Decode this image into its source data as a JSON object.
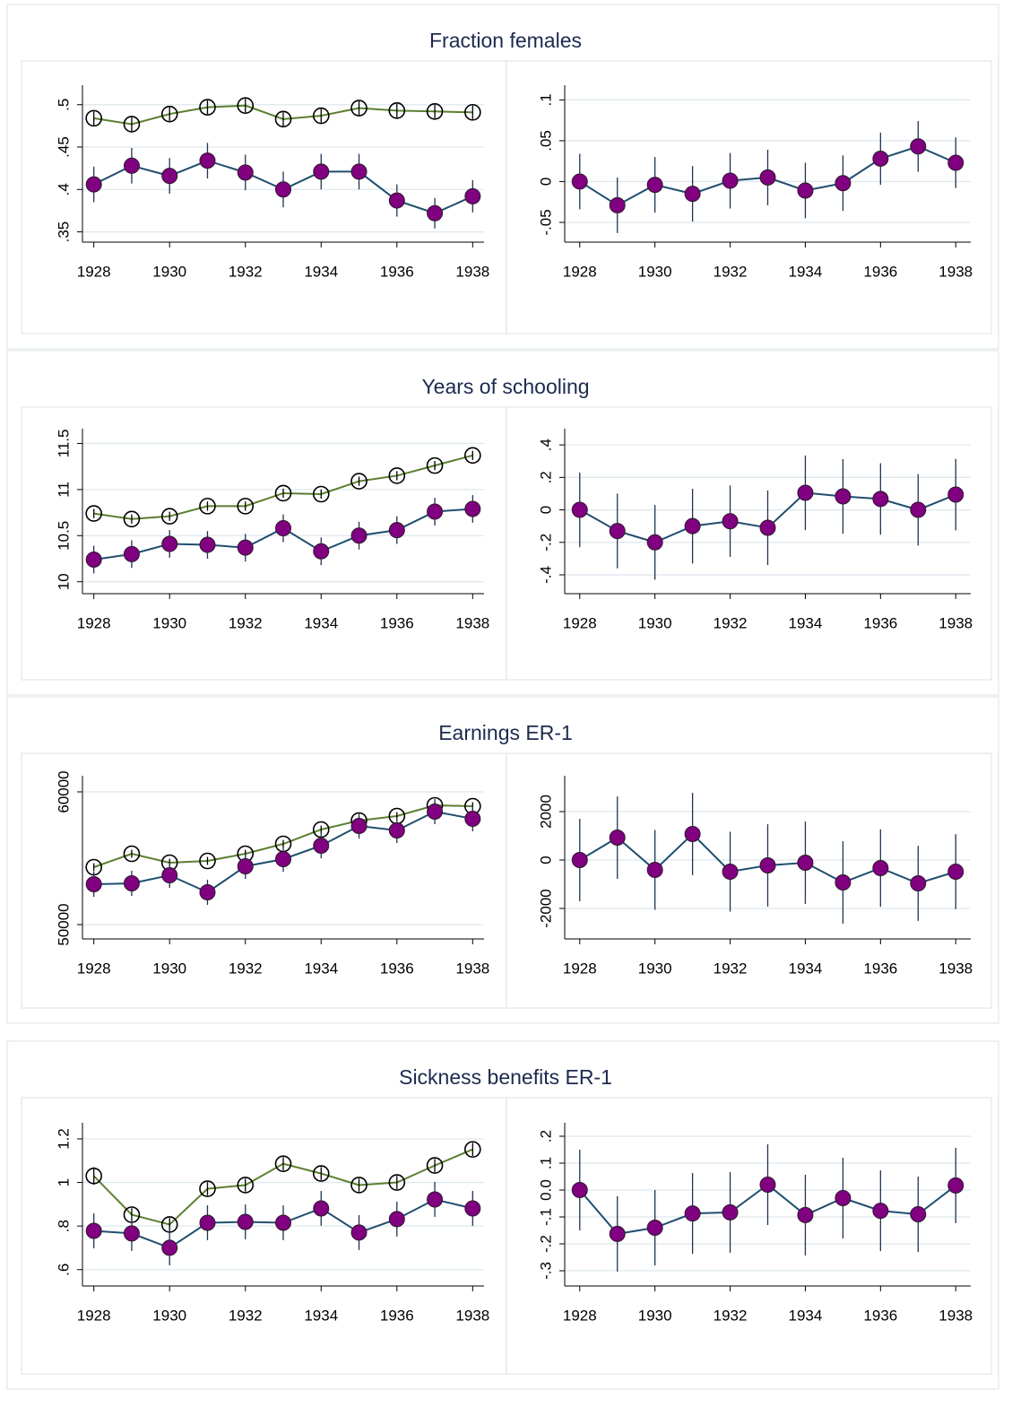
{
  "chart_data": [
    {
      "type": "line",
      "title": "Fraction females",
      "x": [
        1928,
        1929,
        1930,
        1931,
        1932,
        1933,
        1934,
        1935,
        1936,
        1937,
        1938
      ],
      "xlim": [
        1927.7,
        1938.3
      ],
      "xticks": [
        1928,
        1930,
        1932,
        1934,
        1936,
        1938
      ],
      "ylim": [
        0.34,
        0.523
      ],
      "yticks": [
        {
          "value": 0.35,
          "label": ".35"
        },
        {
          "value": 0.4,
          "label": ".4"
        },
        {
          "value": 0.45,
          "label": ".45"
        },
        {
          "value": 0.5,
          "label": ".5"
        }
      ],
      "grid": true,
      "series": [
        {
          "color": "#5b7f2f",
          "marker": "hollow",
          "marker_color": "#000000",
          "values": [
            0.484,
            0.477,
            0.489,
            0.497,
            0.499,
            0.483,
            0.487,
            0.496,
            0.493,
            0.492,
            0.491
          ],
          "errors": [
            0.008,
            0.008,
            0.008,
            0.008,
            0.008,
            0.008,
            0.008,
            0.008,
            0.008,
            0.008,
            0.008
          ]
        },
        {
          "color": "#1f4e6f",
          "marker": "filled",
          "marker_color": "#800080",
          "values": [
            0.406,
            0.428,
            0.416,
            0.434,
            0.42,
            0.4,
            0.421,
            0.421,
            0.387,
            0.372,
            0.392
          ],
          "errors": [
            0.021,
            0.021,
            0.021,
            0.021,
            0.021,
            0.021,
            0.021,
            0.021,
            0.019,
            0.018,
            0.019
          ]
        }
      ]
    },
    {
      "type": "line",
      "x": [
        1928,
        1929,
        1930,
        1931,
        1932,
        1933,
        1934,
        1935,
        1936,
        1937,
        1938
      ],
      "xlim": [
        1927.6,
        1938.4
      ],
      "xticks": [
        1928,
        1930,
        1932,
        1934,
        1936,
        1938
      ],
      "ylim": [
        -0.072,
        0.118
      ],
      "yticks": [
        {
          "value": -0.05,
          "label": "-.05"
        },
        0,
        {
          "value": 0.05,
          "label": ".05"
        },
        {
          "value": 0.1,
          "label": ".1"
        }
      ],
      "grid": true,
      "series": [
        {
          "color": "#1f4e6f",
          "marker": "filled",
          "marker_color": "#800080",
          "values": [
            0,
            -0.029,
            -0.004,
            -0.015,
            0.001,
            0.005,
            -0.011,
            -0.002,
            0.028,
            0.043,
            0.023
          ],
          "errors": [
            0.034,
            0.034,
            0.034,
            0.034,
            0.034,
            0.034,
            0.034,
            0.034,
            0.032,
            0.031,
            0.031
          ]
        }
      ]
    },
    {
      "type": "line",
      "title": "Years of schooling",
      "x": [
        1928,
        1929,
        1930,
        1931,
        1932,
        1933,
        1934,
        1935,
        1936,
        1937,
        1938
      ],
      "xlim": [
        1927.7,
        1938.3
      ],
      "xticks": [
        1928,
        1930,
        1932,
        1934,
        1936,
        1938
      ],
      "ylim": [
        9.89,
        11.66
      ],
      "yticks": [
        10,
        10.5,
        11,
        11.5
      ],
      "grid": true,
      "series": [
        {
          "color": "#5b7f2f",
          "marker": "hollow",
          "marker_color": "#000000",
          "values": [
            10.74,
            10.68,
            10.71,
            10.82,
            10.82,
            10.96,
            10.95,
            11.09,
            11.15,
            11.26,
            11.37
          ],
          "errors": [
            0.05,
            0.05,
            0.05,
            0.05,
            0.05,
            0.05,
            0.05,
            0.05,
            0.05,
            0.05,
            0.05
          ]
        },
        {
          "color": "#1f4e6f",
          "marker": "filled",
          "marker_color": "#800080",
          "values": [
            10.24,
            10.3,
            10.41,
            10.4,
            10.37,
            10.58,
            10.33,
            10.5,
            10.56,
            10.76,
            10.79
          ],
          "errors": [
            0.15,
            0.15,
            0.15,
            0.15,
            0.15,
            0.15,
            0.15,
            0.15,
            0.15,
            0.15,
            0.15
          ]
        }
      ]
    },
    {
      "type": "line",
      "x": [
        1928,
        1929,
        1930,
        1931,
        1932,
        1933,
        1934,
        1935,
        1936,
        1937,
        1938
      ],
      "xlim": [
        1927.6,
        1938.4
      ],
      "xticks": [
        1928,
        1930,
        1932,
        1934,
        1936,
        1938
      ],
      "ylim": [
        -0.505,
        0.5
      ],
      "yticks": [
        {
          "value": -0.4,
          "label": "-.4"
        },
        {
          "value": -0.2,
          "label": "-.2"
        },
        0,
        {
          "value": 0.2,
          "label": ".2"
        },
        {
          "value": 0.4,
          "label": ".4"
        }
      ],
      "grid": true,
      "series": [
        {
          "color": "#1f4e6f",
          "marker": "filled",
          "marker_color": "#800080",
          "values": [
            0,
            -0.13,
            -0.2,
            -0.1,
            -0.07,
            -0.11,
            0.105,
            0.083,
            0.067,
            0,
            0.094
          ],
          "errors": [
            0.23,
            0.23,
            0.23,
            0.23,
            0.22,
            0.23,
            0.23,
            0.23,
            0.22,
            0.22,
            0.22
          ]
        }
      ]
    },
    {
      "type": "line",
      "title": "Earnings ER-1",
      "x": [
        1928,
        1929,
        1930,
        1931,
        1932,
        1933,
        1934,
        1935,
        1936,
        1937,
        1938
      ],
      "xlim": [
        1927.7,
        1938.3
      ],
      "xticks": [
        1928,
        1930,
        1932,
        1934,
        1936,
        1938
      ],
      "ylim": [
        49054,
        61216
      ],
      "yticks": [
        50000,
        60000
      ],
      "grid": true,
      "series": [
        {
          "color": "#5b7f2f",
          "marker": "hollow",
          "marker_color": "#000000",
          "values": [
            54324,
            55338,
            54662,
            54797,
            55338,
            56081,
            57162,
            57838,
            58176,
            58986,
            58919
          ],
          "errors": [
            300,
            300,
            300,
            300,
            300,
            300,
            300,
            300,
            300,
            300,
            300
          ]
        },
        {
          "color": "#1f4e6f",
          "marker": "filled",
          "marker_color": "#800080",
          "values": [
            53041,
            53108,
            53716,
            52432,
            54392,
            54932,
            55946,
            57432,
            57095,
            58514,
            57973
          ],
          "errors": [
            950,
            950,
            950,
            950,
            950,
            950,
            950,
            950,
            950,
            950,
            950
          ]
        }
      ]
    },
    {
      "type": "line",
      "x": [
        1928,
        1929,
        1930,
        1931,
        1932,
        1933,
        1934,
        1935,
        1936,
        1937,
        1938
      ],
      "xlim": [
        1927.6,
        1938.4
      ],
      "xticks": [
        1928,
        1930,
        1932,
        1934,
        1936,
        1938
      ],
      "ylim": [
        -3185,
        3481
      ],
      "yticks": [
        -2000,
        0,
        2000
      ],
      "grid": true,
      "series": [
        {
          "color": "#1f4e6f",
          "marker": "filled",
          "marker_color": "#800080",
          "values": [
            0,
            926,
            -407,
            1074,
            -481,
            -222,
            -111,
            -926,
            -333,
            -963,
            -481
          ],
          "errors": [
            1700,
            1700,
            1650,
            1700,
            1650,
            1700,
            1700,
            1700,
            1600,
            1550,
            1550
          ]
        }
      ]
    },
    {
      "type": "line",
      "title": "Sickness benefits ER-1",
      "x": [
        1928,
        1929,
        1930,
        1931,
        1932,
        1933,
        1934,
        1935,
        1936,
        1937,
        1938
      ],
      "xlim": [
        1927.7,
        1938.3
      ],
      "xticks": [
        1928,
        1930,
        1932,
        1934,
        1936,
        1938
      ],
      "ylim": [
        0.533,
        1.274
      ],
      "yticks": [
        {
          "value": 0.6,
          "label": ".6"
        },
        {
          "value": 0.8,
          "label": ".8"
        },
        1,
        1.2
      ],
      "grid": true,
      "series": [
        {
          "color": "#5b7f2f",
          "marker": "hollow",
          "marker_color": "#000000",
          "values": [
            1.03,
            0.852,
            0.807,
            0.971,
            0.988,
            1.086,
            1.041,
            0.988,
            1,
            1.078,
            1.152
          ],
          "errors": [
            0.04,
            0.03,
            0.03,
            0.03,
            0.03,
            0.03,
            0.03,
            0.03,
            0.03,
            0.03,
            0.03
          ]
        },
        {
          "color": "#1f4e6f",
          "marker": "filled",
          "marker_color": "#800080",
          "values": [
            0.778,
            0.766,
            0.7,
            0.815,
            0.819,
            0.815,
            0.881,
            0.77,
            0.832,
            0.922,
            0.881
          ],
          "errors": [
            0.08,
            0.08,
            0.08,
            0.08,
            0.08,
            0.08,
            0.08,
            0.08,
            0.08,
            0.08,
            0.08
          ]
        }
      ]
    },
    {
      "type": "line",
      "x": [
        1928,
        1929,
        1930,
        1931,
        1932,
        1933,
        1934,
        1935,
        1936,
        1937,
        1938
      ],
      "xlim": [
        1927.6,
        1938.4
      ],
      "xticks": [
        1928,
        1930,
        1932,
        1934,
        1936,
        1938
      ],
      "ylim": [
        -0.35,
        0.25
      ],
      "yticks": [
        {
          "value": -0.3,
          "label": "-.3"
        },
        {
          "value": -0.2,
          "label": "-.2"
        },
        {
          "value": -0.1,
          "label": "-.1"
        },
        {
          "value": 0,
          "label": "0.0"
        },
        {
          "value": 0.1,
          "label": ".1"
        },
        {
          "value": 0.2,
          "label": ".2"
        }
      ],
      "grid": true,
      "series": [
        {
          "color": "#1f4e6f",
          "marker": "filled",
          "marker_color": "#800080",
          "values": [
            0,
            -0.163,
            -0.14,
            -0.087,
            -0.083,
            0.02,
            -0.093,
            -0.03,
            -0.077,
            -0.09,
            0.017
          ],
          "errors": [
            0.15,
            0.14,
            0.14,
            0.15,
            0.15,
            0.15,
            0.15,
            0.15,
            0.15,
            0.14,
            0.14
          ]
        }
      ]
    }
  ]
}
